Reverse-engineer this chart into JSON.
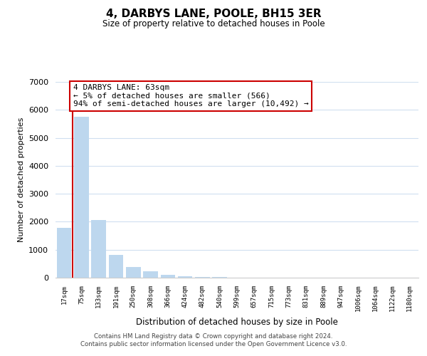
{
  "title": "4, DARBYS LANE, POOLE, BH15 3ER",
  "subtitle": "Size of property relative to detached houses in Poole",
  "xlabel": "Distribution of detached houses by size in Poole",
  "ylabel": "Number of detached properties",
  "bar_labels": [
    "17sqm",
    "75sqm",
    "133sqm",
    "191sqm",
    "250sqm",
    "308sqm",
    "366sqm",
    "424sqm",
    "482sqm",
    "540sqm",
    "599sqm",
    "657sqm",
    "715sqm",
    "773sqm",
    "831sqm",
    "889sqm",
    "947sqm",
    "1006sqm",
    "1064sqm",
    "1122sqm",
    "1180sqm"
  ],
  "bar_values": [
    1780,
    5750,
    2050,
    820,
    370,
    230,
    110,
    60,
    30,
    15,
    5,
    0,
    0,
    0,
    0,
    0,
    0,
    0,
    0,
    0,
    0
  ],
  "bar_color": "#bdd7ee",
  "annotation_title": "4 DARBYS LANE: 63sqm",
  "annotation_line1": "← 5% of detached houses are smaller (566)",
  "annotation_line2": "94% of semi-detached houses are larger (10,492) →",
  "annotation_box_edge": "#cc0000",
  "red_line_x": 0.5,
  "ylim": [
    0,
    7000
  ],
  "grid_color": "#d0dff0",
  "footer1": "Contains HM Land Registry data © Crown copyright and database right 2024.",
  "footer2": "Contains public sector information licensed under the Open Government Licence v3.0."
}
